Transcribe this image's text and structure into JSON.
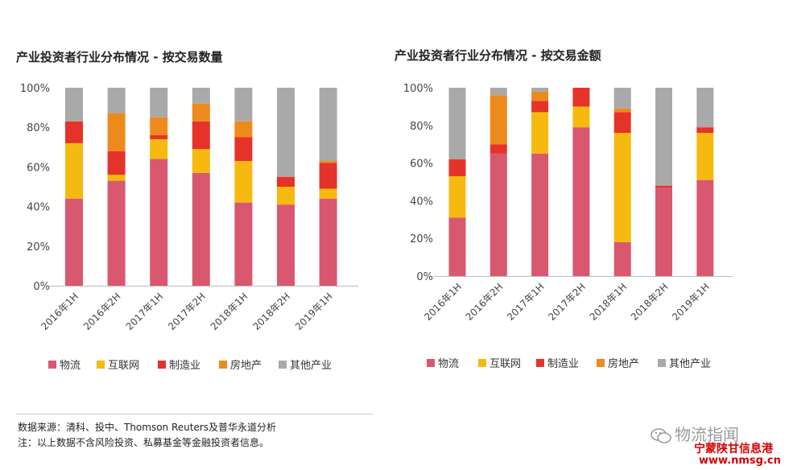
{
  "charts": [
    {
      "title": "产业投资者行业分布情况 - 按交易数量"
    },
    {
      "title": "产业投资者行业分布情况 - 按交易金额"
    }
  ],
  "chart_data": [
    {
      "type": "bar",
      "stacked": true,
      "title": "产业投资者行业分布情况 - 按交易数量",
      "categories": [
        "2016年1H",
        "2016年2H",
        "2017年1H",
        "2017年2H",
        "2018年1H",
        "2018年2H",
        "2019年1H"
      ],
      "ylim": [
        0,
        100
      ],
      "yticks": [
        "0%",
        "20%",
        "40%",
        "60%",
        "80%",
        "100%"
      ],
      "legend_position": "bottom",
      "series": [
        {
          "name": "物流",
          "color": "#d9586f",
          "values": [
            44,
            53,
            64,
            57,
            42,
            41,
            44
          ]
        },
        {
          "name": "互联网",
          "color": "#f6b90f",
          "values": [
            28,
            3,
            10,
            12,
            21,
            9,
            5
          ]
        },
        {
          "name": "制造业",
          "color": "#e5332a",
          "values": [
            11,
            12,
            2,
            14,
            12,
            5,
            13
          ]
        },
        {
          "name": "房地产",
          "color": "#ee8a1d",
          "values": [
            0,
            19,
            9,
            9,
            8,
            0,
            1
          ]
        },
        {
          "name": "其他产业",
          "color": "#a9a9a9",
          "values": [
            17,
            13,
            15,
            8,
            17,
            45,
            37
          ]
        }
      ]
    },
    {
      "type": "bar",
      "stacked": true,
      "title": "产业投资者行业分布情况 - 按交易金额",
      "categories": [
        "2016年1H",
        "2016年2H",
        "2017年1H",
        "2017年2H",
        "2018年1H",
        "2018年2H",
        "2019年1H"
      ],
      "ylim": [
        0,
        100
      ],
      "yticks": [
        "0%",
        "20%",
        "40%",
        "60%",
        "80%",
        "100%"
      ],
      "legend_position": "bottom",
      "series": [
        {
          "name": "物流",
          "color": "#d9586f",
          "values": [
            31,
            65,
            65,
            79,
            18,
            47,
            51
          ]
        },
        {
          "name": "互联网",
          "color": "#f6b90f",
          "values": [
            22,
            0,
            22,
            11,
            58,
            0,
            25
          ]
        },
        {
          "name": "制造业",
          "color": "#e5332a",
          "values": [
            9,
            5,
            6,
            10,
            11,
            1,
            3
          ]
        },
        {
          "name": "房地产",
          "color": "#ee8a1d",
          "values": [
            0,
            26,
            5,
            0,
            2,
            0,
            0
          ]
        },
        {
          "name": "其他产业",
          "color": "#a9a9a9",
          "values": [
            38,
            4,
            2,
            0,
            11,
            52,
            21
          ]
        }
      ]
    }
  ],
  "footnotes": {
    "source": "数据来源：清科、投中、Thomson Reuters及普华永道分析",
    "note": "注：以上数据不含风险投资、私募基金等金融投资者信息。"
  },
  "watermark": {
    "wechat_text": "物流指闻",
    "site_name": "宁蒙陕甘信息港",
    "site_url": "www.nmsg.cn"
  }
}
